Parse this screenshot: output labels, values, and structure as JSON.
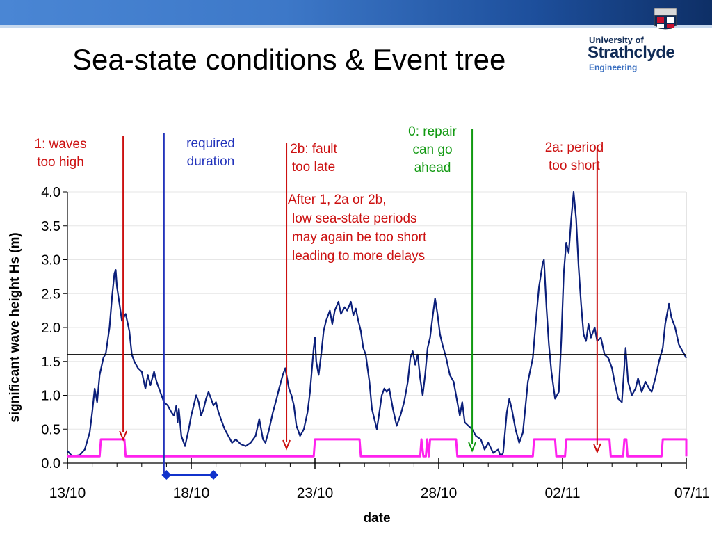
{
  "slide": {
    "title": "Sea-state conditions & Event tree"
  },
  "logo": {
    "line1": "University of",
    "line2": "Strathclyde",
    "line3": "Engineering",
    "colors": [
      "#0f2a55",
      "#c8102e",
      "#3a6fc0"
    ]
  },
  "annotations": [
    {
      "id": "waves-too-high",
      "lines": [
        "1: waves",
        "too high"
      ],
      "color": "#cc1111",
      "x": 15.25
    },
    {
      "id": "required-duration",
      "lines": [
        "required",
        "duration"
      ],
      "color": "#2233bb",
      "x": 16.9
    },
    {
      "id": "fault-too-late",
      "lines": [
        "2b: fault",
        "too late"
      ],
      "color": "#cc1111",
      "x": 21.85
    },
    {
      "id": "repair-ahead",
      "lines": [
        "0: repair",
        "can go",
        "ahead"
      ],
      "color": "#119911",
      "x": 29.35
    },
    {
      "id": "period-too-short",
      "lines": [
        "2a: period",
        "too short"
      ],
      "color": "#cc1111",
      "x": 34.4
    }
  ],
  "note": {
    "lines": [
      "After 1, 2a or 2b,",
      "low sea-state periods",
      "may again be too short",
      "leading to more delays"
    ],
    "color": "#cc1111"
  },
  "chart_data": {
    "type": "line",
    "xlabel": "date",
    "ylabel": "significant wave height Hs (m)",
    "ylim": [
      0,
      4
    ],
    "yticks": [
      0.0,
      0.5,
      1.0,
      1.5,
      2.0,
      2.5,
      3.0,
      3.5,
      4.0
    ],
    "x_axis_note": "x values are days of October (day 32 = 01/11)",
    "xlim": [
      13,
      38
    ],
    "xticks": [
      {
        "x": 13,
        "label": "13/10"
      },
      {
        "x": 18,
        "label": "18/10"
      },
      {
        "x": 23,
        "label": "23/10"
      },
      {
        "x": 28,
        "label": "28/10"
      },
      {
        "x": 33,
        "label": "02/11"
      },
      {
        "x": 38,
        "label": "07/11"
      }
    ],
    "threshold": {
      "y": 1.6,
      "color": "#000000"
    },
    "duration_marker": {
      "x_start": 17.0,
      "x_end": 18.9,
      "color": "#1133cc"
    },
    "series": [
      {
        "color": "#0b1f7a",
        "points": [
          [
            13.0,
            0.18
          ],
          [
            13.2,
            0.1
          ],
          [
            13.5,
            0.12
          ],
          [
            13.7,
            0.2
          ],
          [
            13.9,
            0.45
          ],
          [
            14.0,
            0.75
          ],
          [
            14.1,
            1.1
          ],
          [
            14.2,
            0.9
          ],
          [
            14.3,
            1.3
          ],
          [
            14.45,
            1.55
          ],
          [
            14.55,
            1.62
          ],
          [
            14.7,
            2.0
          ],
          [
            14.8,
            2.45
          ],
          [
            14.9,
            2.8
          ],
          [
            14.95,
            2.85
          ],
          [
            15.0,
            2.6
          ],
          [
            15.1,
            2.35
          ],
          [
            15.2,
            2.1
          ],
          [
            15.35,
            2.2
          ],
          [
            15.5,
            1.95
          ],
          [
            15.6,
            1.6
          ],
          [
            15.7,
            1.5
          ],
          [
            15.85,
            1.4
          ],
          [
            16.0,
            1.35
          ],
          [
            16.15,
            1.1
          ],
          [
            16.25,
            1.3
          ],
          [
            16.35,
            1.15
          ],
          [
            16.5,
            1.35
          ],
          [
            16.6,
            1.2
          ],
          [
            16.75,
            1.05
          ],
          [
            16.9,
            0.9
          ],
          [
            17.05,
            0.85
          ],
          [
            17.2,
            0.75
          ],
          [
            17.3,
            0.7
          ],
          [
            17.4,
            0.85
          ],
          [
            17.45,
            0.6
          ],
          [
            17.5,
            0.8
          ],
          [
            17.6,
            0.4
          ],
          [
            17.75,
            0.25
          ],
          [
            17.9,
            0.5
          ],
          [
            18.0,
            0.7
          ],
          [
            18.1,
            0.85
          ],
          [
            18.2,
            1.0
          ],
          [
            18.3,
            0.9
          ],
          [
            18.4,
            0.7
          ],
          [
            18.5,
            0.8
          ],
          [
            18.6,
            0.95
          ],
          [
            18.7,
            1.05
          ],
          [
            18.8,
            0.95
          ],
          [
            18.9,
            0.85
          ],
          [
            19.0,
            0.9
          ],
          [
            19.1,
            0.75
          ],
          [
            19.2,
            0.65
          ],
          [
            19.35,
            0.5
          ],
          [
            19.5,
            0.4
          ],
          [
            19.65,
            0.3
          ],
          [
            19.8,
            0.35
          ],
          [
            20.0,
            0.28
          ],
          [
            20.2,
            0.25
          ],
          [
            20.4,
            0.3
          ],
          [
            20.6,
            0.4
          ],
          [
            20.75,
            0.65
          ],
          [
            20.9,
            0.35
          ],
          [
            21.0,
            0.3
          ],
          [
            21.15,
            0.5
          ],
          [
            21.3,
            0.75
          ],
          [
            21.45,
            0.95
          ],
          [
            21.55,
            1.1
          ],
          [
            21.7,
            1.3
          ],
          [
            21.8,
            1.4
          ],
          [
            21.95,
            1.1
          ],
          [
            22.05,
            1.0
          ],
          [
            22.15,
            0.85
          ],
          [
            22.25,
            0.55
          ],
          [
            22.4,
            0.4
          ],
          [
            22.55,
            0.5
          ],
          [
            22.7,
            0.75
          ],
          [
            22.8,
            1.05
          ],
          [
            22.95,
            1.7
          ],
          [
            23.0,
            1.85
          ],
          [
            23.05,
            1.5
          ],
          [
            23.15,
            1.3
          ],
          [
            23.25,
            1.6
          ],
          [
            23.35,
            1.95
          ],
          [
            23.45,
            2.1
          ],
          [
            23.6,
            2.25
          ],
          [
            23.7,
            2.05
          ],
          [
            23.8,
            2.25
          ],
          [
            23.95,
            2.38
          ],
          [
            24.05,
            2.2
          ],
          [
            24.2,
            2.3
          ],
          [
            24.3,
            2.25
          ],
          [
            24.45,
            2.38
          ],
          [
            24.55,
            2.18
          ],
          [
            24.65,
            2.28
          ],
          [
            24.75,
            2.1
          ],
          [
            24.85,
            1.95
          ],
          [
            24.95,
            1.7
          ],
          [
            25.05,
            1.6
          ],
          [
            25.2,
            1.2
          ],
          [
            25.3,
            0.8
          ],
          [
            25.4,
            0.65
          ],
          [
            25.5,
            0.5
          ],
          [
            25.6,
            0.75
          ],
          [
            25.7,
            1.0
          ],
          [
            25.8,
            1.1
          ],
          [
            25.9,
            1.05
          ],
          [
            26.0,
            1.1
          ],
          [
            26.15,
            0.8
          ],
          [
            26.3,
            0.55
          ],
          [
            26.45,
            0.7
          ],
          [
            26.6,
            0.9
          ],
          [
            26.75,
            1.2
          ],
          [
            26.85,
            1.55
          ],
          [
            26.95,
            1.65
          ],
          [
            27.05,
            1.45
          ],
          [
            27.15,
            1.6
          ],
          [
            27.25,
            1.25
          ],
          [
            27.35,
            1.0
          ],
          [
            27.45,
            1.3
          ],
          [
            27.55,
            1.7
          ],
          [
            27.65,
            1.85
          ],
          [
            27.75,
            2.15
          ],
          [
            27.85,
            2.43
          ],
          [
            27.95,
            2.2
          ],
          [
            28.05,
            1.9
          ],
          [
            28.15,
            1.75
          ],
          [
            28.3,
            1.55
          ],
          [
            28.45,
            1.3
          ],
          [
            28.6,
            1.2
          ],
          [
            28.75,
            0.9
          ],
          [
            28.85,
            0.7
          ],
          [
            28.95,
            0.9
          ],
          [
            29.05,
            0.6
          ],
          [
            29.2,
            0.55
          ],
          [
            29.35,
            0.5
          ],
          [
            29.5,
            0.4
          ],
          [
            29.7,
            0.35
          ],
          [
            29.85,
            0.2
          ],
          [
            30.0,
            0.3
          ],
          [
            30.2,
            0.15
          ],
          [
            30.4,
            0.2
          ],
          [
            30.5,
            0.1
          ],
          [
            30.6,
            0.15
          ],
          [
            30.75,
            0.75
          ],
          [
            30.85,
            0.95
          ],
          [
            30.95,
            0.8
          ],
          [
            31.1,
            0.5
          ],
          [
            31.25,
            0.3
          ],
          [
            31.4,
            0.45
          ],
          [
            31.6,
            1.2
          ],
          [
            31.8,
            1.55
          ],
          [
            31.95,
            2.2
          ],
          [
            32.05,
            2.6
          ],
          [
            32.2,
            2.95
          ],
          [
            32.25,
            3.0
          ],
          [
            32.35,
            2.3
          ],
          [
            32.45,
            1.75
          ],
          [
            32.55,
            1.35
          ],
          [
            32.7,
            0.95
          ],
          [
            32.85,
            1.05
          ],
          [
            32.95,
            1.8
          ],
          [
            33.05,
            2.8
          ],
          [
            33.15,
            3.25
          ],
          [
            33.25,
            3.1
          ],
          [
            33.35,
            3.6
          ],
          [
            33.45,
            4.0
          ],
          [
            33.55,
            3.6
          ],
          [
            33.65,
            2.9
          ],
          [
            33.75,
            2.35
          ],
          [
            33.85,
            1.9
          ],
          [
            33.95,
            1.8
          ],
          [
            34.05,
            2.05
          ],
          [
            34.15,
            1.85
          ],
          [
            34.3,
            2.0
          ],
          [
            34.4,
            1.8
          ],
          [
            34.55,
            1.85
          ],
          [
            34.7,
            1.6
          ],
          [
            34.85,
            1.55
          ],
          [
            35.0,
            1.4
          ],
          [
            35.1,
            1.2
          ],
          [
            35.25,
            0.95
          ],
          [
            35.4,
            0.9
          ],
          [
            35.55,
            1.7
          ],
          [
            35.65,
            1.2
          ],
          [
            35.8,
            1.0
          ],
          [
            35.95,
            1.1
          ],
          [
            36.05,
            1.25
          ],
          [
            36.2,
            1.05
          ],
          [
            36.35,
            1.2
          ],
          [
            36.5,
            1.1
          ],
          [
            36.6,
            1.05
          ],
          [
            36.75,
            1.25
          ],
          [
            36.9,
            1.5
          ],
          [
            37.05,
            1.7
          ],
          [
            37.15,
            2.05
          ],
          [
            37.3,
            2.35
          ],
          [
            37.4,
            2.15
          ],
          [
            37.55,
            2.0
          ],
          [
            37.7,
            1.75
          ],
          [
            37.85,
            1.65
          ],
          [
            38.0,
            1.55
          ]
        ]
      },
      {
        "color": "#ff22ee",
        "points": [
          [
            13.0,
            0.1
          ],
          [
            14.3,
            0.1
          ],
          [
            14.35,
            0.35
          ],
          [
            15.3,
            0.35
          ],
          [
            15.35,
            0.1
          ],
          [
            22.95,
            0.1
          ],
          [
            23.0,
            0.35
          ],
          [
            24.8,
            0.35
          ],
          [
            24.85,
            0.1
          ],
          [
            27.25,
            0.1
          ],
          [
            27.3,
            0.35
          ],
          [
            27.38,
            0.1
          ],
          [
            27.48,
            0.1
          ],
          [
            27.53,
            0.35
          ],
          [
            27.6,
            0.1
          ],
          [
            27.65,
            0.35
          ],
          [
            28.7,
            0.35
          ],
          [
            28.75,
            0.1
          ],
          [
            31.8,
            0.1
          ],
          [
            31.85,
            0.35
          ],
          [
            32.7,
            0.35
          ],
          [
            32.75,
            0.1
          ],
          [
            33.1,
            0.1
          ],
          [
            33.15,
            0.35
          ],
          [
            34.9,
            0.35
          ],
          [
            34.95,
            0.1
          ],
          [
            35.45,
            0.1
          ],
          [
            35.5,
            0.35
          ],
          [
            35.58,
            0.35
          ],
          [
            35.63,
            0.1
          ],
          [
            37.0,
            0.1
          ],
          [
            37.05,
            0.35
          ],
          [
            38.0,
            0.35
          ],
          [
            38.0,
            0.1
          ]
        ]
      }
    ]
  }
}
